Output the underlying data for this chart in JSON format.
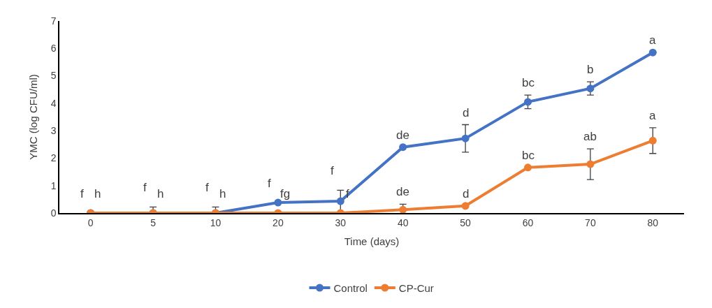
{
  "chart_data": {
    "type": "line",
    "xlabel": "Time (days)",
    "ylabel": "YMC (log CFU/ml)",
    "categories": [
      "0",
      "5",
      "10",
      "20",
      "30",
      "40",
      "50",
      "60",
      "70",
      "80"
    ],
    "series": [
      {
        "name": "Control",
        "color": "#4472c4",
        "values": [
          0,
          0,
          0,
          0.38,
          0.43,
          2.4,
          2.72,
          4.05,
          4.54,
          5.85
        ],
        "errors": [
          null,
          0.22,
          0.22,
          null,
          0.4,
          null,
          0.5,
          0.25,
          0.24,
          null
        ]
      },
      {
        "name": "CP-Cur",
        "color": "#ed7d31",
        "values": [
          0,
          0,
          0,
          0,
          0,
          0.12,
          0.26,
          1.66,
          1.78,
          2.64
        ],
        "errors": [
          null,
          null,
          null,
          null,
          null,
          0.2,
          null,
          null,
          0.56,
          0.47
        ]
      }
    ],
    "ylim": [
      0,
      7
    ],
    "yticks": [
      0,
      1,
      2,
      3,
      4,
      5,
      6,
      7
    ],
    "legend": "bottom",
    "marker": "circle",
    "line_style": "solid",
    "annotations": [
      {
        "text": "f",
        "x": "0",
        "y": 0
      },
      {
        "text": "h",
        "x": "0",
        "y": 0
      },
      {
        "text": "f",
        "x": "5",
        "y": 0
      },
      {
        "text": "h",
        "x": "5",
        "y": 0
      },
      {
        "text": "f",
        "x": "10",
        "y": 0
      },
      {
        "text": "h",
        "x": "10",
        "y": 0
      },
      {
        "text": "f",
        "x": "20",
        "y": 0.38
      },
      {
        "text": "fg",
        "x": "20",
        "y": 0
      },
      {
        "text": "f",
        "x": "30",
        "y": 0.43
      },
      {
        "text": "f",
        "x": "30",
        "y": 0
      },
      {
        "text": "de",
        "x": "40",
        "y": 2.4
      },
      {
        "text": "de",
        "x": "40",
        "y": 0.12
      },
      {
        "text": "d",
        "x": "50",
        "y": 2.72
      },
      {
        "text": "d",
        "x": "50",
        "y": 0.26
      },
      {
        "text": "bc",
        "x": "60",
        "y": 4.05
      },
      {
        "text": "bc",
        "x": "60",
        "y": 1.66
      },
      {
        "text": "b",
        "x": "70",
        "y": 4.54
      },
      {
        "text": "ab",
        "x": "70",
        "y": 1.78
      },
      {
        "text": "a",
        "x": "80",
        "y": 5.85
      },
      {
        "text": "a",
        "x": "80",
        "y": 2.64
      }
    ]
  }
}
